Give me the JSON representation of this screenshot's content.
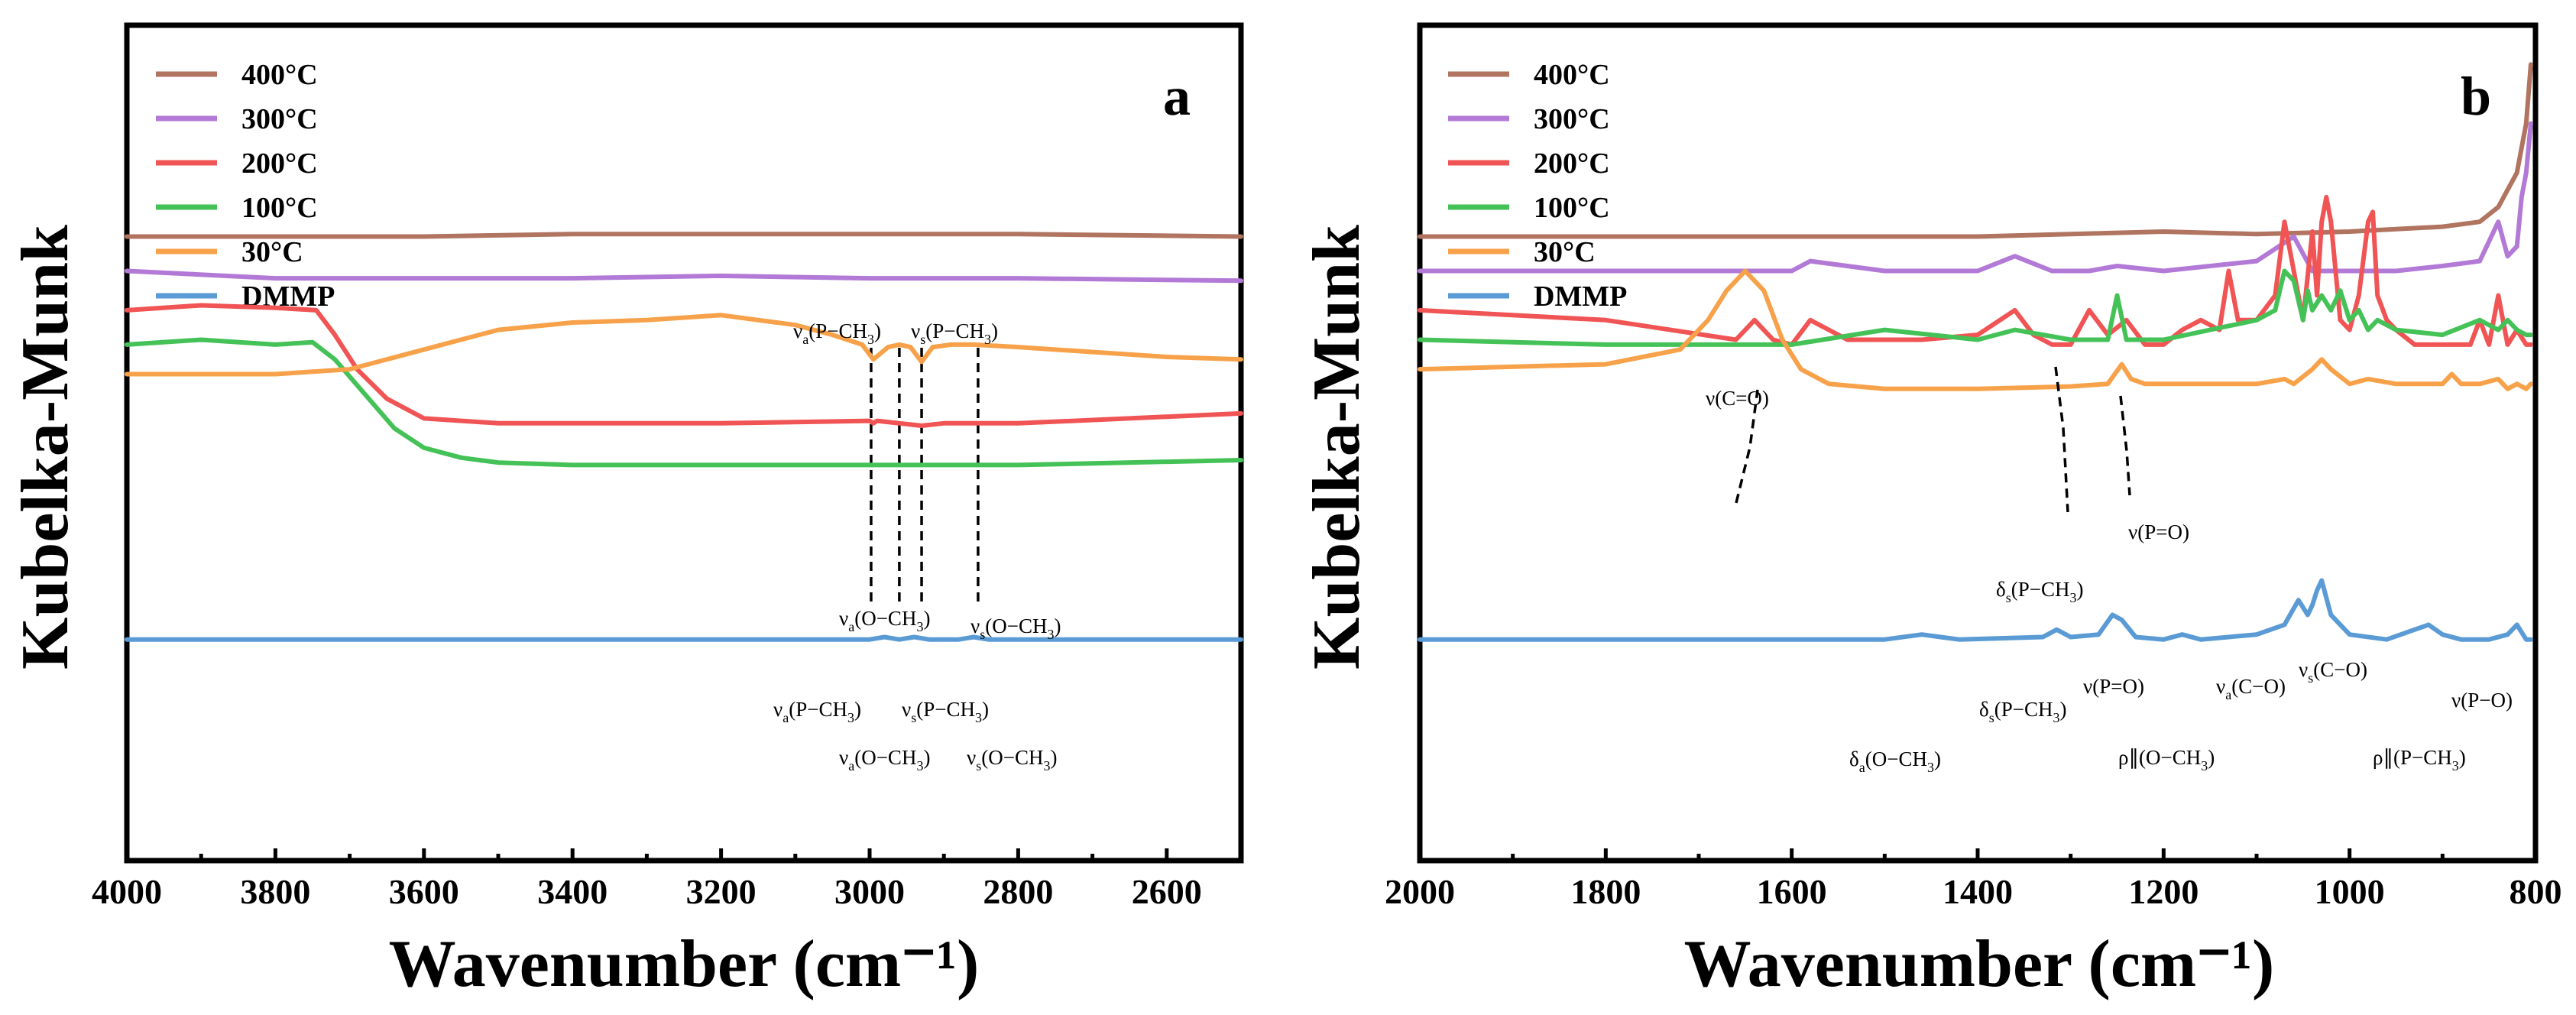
{
  "chart_data": [
    {
      "panel": "a",
      "type": "line",
      "xlabel": "Wavenumber (cm⁻¹)",
      "ylabel": "Kubelka-Munk",
      "xlim": [
        4000,
        2500
      ],
      "xticks": [
        4000,
        3800,
        3600,
        3400,
        3200,
        3000,
        2800,
        2600
      ],
      "legend_position": "top-left",
      "series": [
        {
          "name": "400°C",
          "color": "#b07460",
          "x": [
            4000,
            3800,
            3600,
            3400,
            3200,
            3000,
            2800,
            2500
          ],
          "y": [
            1.07,
            1.07,
            1.07,
            1.075,
            1.075,
            1.075,
            1.075,
            1.07
          ]
        },
        {
          "name": "300°C",
          "color": "#b27ad6",
          "x": [
            4000,
            3800,
            3600,
            3400,
            3200,
            3000,
            2800,
            2500
          ],
          "y": [
            1.0,
            0.985,
            0.985,
            0.985,
            0.99,
            0.985,
            0.985,
            0.98
          ]
        },
        {
          "name": "200°C",
          "color": "#f05454",
          "x": [
            4000,
            3900,
            3800,
            3745,
            3720,
            3690,
            3650,
            3600,
            3500,
            3400,
            3200,
            3000,
            2995,
            2990,
            2960,
            2930,
            2900,
            2800,
            2500
          ],
          "y": [
            0.92,
            0.93,
            0.925,
            0.92,
            0.87,
            0.8,
            0.74,
            0.7,
            0.69,
            0.69,
            0.69,
            0.695,
            0.69,
            0.695,
            0.69,
            0.685,
            0.69,
            0.69,
            0.71
          ]
        },
        {
          "name": "100°C",
          "color": "#45c257",
          "x": [
            4000,
            3900,
            3800,
            3750,
            3720,
            3680,
            3640,
            3600,
            3550,
            3500,
            3400,
            3200,
            3000,
            2900,
            2800,
            2500
          ],
          "y": [
            0.85,
            0.86,
            0.85,
            0.855,
            0.82,
            0.75,
            0.68,
            0.64,
            0.62,
            0.61,
            0.605,
            0.605,
            0.605,
            0.605,
            0.605,
            0.615
          ]
        },
        {
          "name": "30°C",
          "color": "#f7a24a",
          "x": [
            4000,
            3800,
            3700,
            3600,
            3500,
            3400,
            3300,
            3200,
            3100,
            3050,
            3010,
            2995,
            2975,
            2960,
            2945,
            2930,
            2915,
            2890,
            2860,
            2800,
            2600,
            2500
          ],
          "y": [
            0.79,
            0.79,
            0.8,
            0.84,
            0.88,
            0.895,
            0.9,
            0.91,
            0.89,
            0.87,
            0.85,
            0.82,
            0.845,
            0.85,
            0.845,
            0.815,
            0.845,
            0.85,
            0.85,
            0.845,
            0.825,
            0.82
          ]
        },
        {
          "name": "DMMP",
          "color": "#5a9bd5",
          "x": [
            4000,
            3000,
            2980,
            2960,
            2940,
            2920,
            2880,
            2860,
            2840,
            2500
          ],
          "y": [
            0.25,
            0.25,
            0.255,
            0.25,
            0.255,
            0.25,
            0.25,
            0.255,
            0.25,
            0.25
          ]
        }
      ],
      "markers": [
        2998,
        2960,
        2930,
        2854
      ],
      "annotations": {
        "top": [
          {
            "base": "ν",
            "sub": "a",
            "text": "(P−CH",
            "sub2": "3",
            "close": ")"
          },
          {
            "base": "ν",
            "sub": "s",
            "text": "(P−CH",
            "sub2": "3",
            "close": ")"
          }
        ],
        "bottom": [
          {
            "base": "ν",
            "sub": "a",
            "text": "(O−CH",
            "sub2": "3",
            "close": ")"
          },
          {
            "base": "ν",
            "sub": "s",
            "text": "(O−CH",
            "sub2": "3",
            "close": ")"
          }
        ],
        "dmmp_top": [
          {
            "base": "ν",
            "sub": "a",
            "text": "(P−CH",
            "sub2": "3",
            "close": ")"
          },
          {
            "base": "ν",
            "sub": "s",
            "text": "(P−CH",
            "sub2": "3",
            "close": ")"
          }
        ],
        "dmmp_bottom": [
          {
            "base": "ν",
            "sub": "a",
            "text": "(O−CH",
            "sub2": "3",
            "close": ")"
          },
          {
            "base": "ν",
            "sub": "s",
            "text": "(O−CH",
            "sub2": "3",
            "close": ")"
          }
        ]
      }
    },
    {
      "panel": "b",
      "type": "line",
      "xlabel": "Wavenumber (cm⁻¹)",
      "ylabel": "Kubelka-Munk",
      "xlim": [
        2000,
        800
      ],
      "xticks": [
        2000,
        1800,
        1600,
        1400,
        1200,
        1000,
        800
      ],
      "legend_position": "top-left",
      "series": [
        {
          "name": "400°C",
          "color": "#b07460",
          "x": [
            2000,
            1800,
            1600,
            1400,
            1300,
            1200,
            1100,
            1000,
            950,
            900,
            860,
            840,
            820,
            810,
            805
          ],
          "y": [
            1.07,
            1.07,
            1.07,
            1.07,
            1.075,
            1.08,
            1.075,
            1.08,
            1.085,
            1.09,
            1.1,
            1.13,
            1.2,
            1.3,
            1.42
          ]
        },
        {
          "name": "300°C",
          "color": "#b27ad6",
          "x": [
            2000,
            1800,
            1600,
            1580,
            1500,
            1400,
            1360,
            1320,
            1280,
            1250,
            1200,
            1100,
            1060,
            1040,
            1000,
            950,
            900,
            860,
            840,
            830,
            820,
            815,
            810,
            805
          ],
          "y": [
            1.0,
            1.0,
            1.0,
            1.02,
            1.0,
            1.0,
            1.03,
            1.0,
            1.0,
            1.01,
            1.0,
            1.02,
            1.07,
            1.0,
            1.0,
            1.0,
            1.01,
            1.02,
            1.1,
            1.03,
            1.05,
            1.15,
            1.2,
            1.3
          ]
        },
        {
          "name": "200°C",
          "color": "#f05454",
          "x": [
            2000,
            1800,
            1660,
            1640,
            1620,
            1600,
            1580,
            1560,
            1540,
            1500,
            1460,
            1400,
            1360,
            1340,
            1320,
            1300,
            1280,
            1260,
            1240,
            1220,
            1200,
            1180,
            1160,
            1140,
            1130,
            1120,
            1100,
            1080,
            1070,
            1060,
            1050,
            1040,
            1035,
            1030,
            1025,
            1020,
            1010,
            1000,
            990,
            980,
            975,
            970,
            960,
            950,
            930,
            900,
            880,
            870,
            860,
            850,
            840,
            830,
            820,
            810,
            805
          ],
          "y": [
            0.92,
            0.9,
            0.86,
            0.9,
            0.86,
            0.85,
            0.9,
            0.88,
            0.86,
            0.86,
            0.86,
            0.87,
            0.92,
            0.87,
            0.85,
            0.85,
            0.92,
            0.87,
            0.9,
            0.85,
            0.85,
            0.88,
            0.9,
            0.88,
            1.0,
            0.9,
            0.9,
            0.95,
            1.1,
            1.0,
            0.9,
            1.08,
            0.95,
            1.1,
            1.15,
            1.1,
            0.9,
            0.88,
            0.95,
            1.1,
            1.12,
            0.95,
            0.9,
            0.88,
            0.85,
            0.85,
            0.85,
            0.85,
            0.9,
            0.85,
            0.95,
            0.85,
            0.88,
            0.85,
            0.85
          ]
        },
        {
          "name": "100°C",
          "color": "#45c257",
          "x": [
            2000,
            1800,
            1600,
            1500,
            1400,
            1360,
            1300,
            1260,
            1250,
            1240,
            1200,
            1150,
            1100,
            1080,
            1070,
            1060,
            1050,
            1045,
            1040,
            1030,
            1020,
            1010,
            1000,
            990,
            980,
            970,
            950,
            900,
            860,
            840,
            830,
            820,
            810,
            805
          ],
          "y": [
            0.86,
            0.85,
            0.85,
            0.88,
            0.86,
            0.88,
            0.86,
            0.86,
            0.95,
            0.86,
            0.86,
            0.88,
            0.9,
            0.92,
            1.0,
            0.98,
            0.9,
            0.96,
            0.92,
            0.95,
            0.92,
            0.96,
            0.9,
            0.92,
            0.88,
            0.9,
            0.88,
            0.87,
            0.9,
            0.88,
            0.9,
            0.88,
            0.87,
            0.87
          ]
        },
        {
          "name": "30°C",
          "color": "#f7a24a",
          "x": [
            2000,
            1800,
            1720,
            1690,
            1670,
            1650,
            1630,
            1610,
            1590,
            1560,
            1500,
            1400,
            1300,
            1260,
            1245,
            1235,
            1220,
            1200,
            1100,
            1070,
            1060,
            1040,
            1030,
            1020,
            1000,
            980,
            950,
            900,
            890,
            880,
            860,
            840,
            830,
            820,
            810,
            805
          ],
          "y": [
            0.8,
            0.81,
            0.84,
            0.9,
            0.96,
            1.0,
            0.96,
            0.86,
            0.8,
            0.77,
            0.76,
            0.76,
            0.765,
            0.77,
            0.81,
            0.78,
            0.77,
            0.77,
            0.77,
            0.78,
            0.77,
            0.8,
            0.82,
            0.8,
            0.77,
            0.78,
            0.77,
            0.77,
            0.79,
            0.77,
            0.77,
            0.78,
            0.76,
            0.77,
            0.76,
            0.77
          ]
        },
        {
          "name": "DMMP",
          "color": "#5a9bd5",
          "x": [
            2000,
            1500,
            1460,
            1420,
            1330,
            1315,
            1300,
            1270,
            1255,
            1245,
            1230,
            1200,
            1180,
            1160,
            1100,
            1070,
            1055,
            1045,
            1040,
            1035,
            1030,
            1020,
            1000,
            960,
            930,
            915,
            900,
            880,
            850,
            830,
            820,
            810,
            805
          ],
          "y": [
            0.25,
            0.25,
            0.26,
            0.25,
            0.255,
            0.27,
            0.255,
            0.26,
            0.3,
            0.29,
            0.255,
            0.25,
            0.26,
            0.25,
            0.26,
            0.28,
            0.33,
            0.3,
            0.32,
            0.35,
            0.37,
            0.3,
            0.26,
            0.25,
            0.27,
            0.28,
            0.26,
            0.25,
            0.25,
            0.26,
            0.28,
            0.25,
            0.25
          ]
        }
      ],
      "annotations": {
        "co": {
          "text": "ν(C=O)"
        },
        "ds_pch3": {
          "base": "δ",
          "sub": "s",
          "text": "(P−CH",
          "sub2": "3",
          "close": ")"
        },
        "vpo": {
          "text": "ν(P=O)"
        },
        "dmmp_ds_pch3": {
          "base": "δ",
          "sub": "s",
          "text": "(P−CH",
          "sub2": "3",
          "close": ")"
        },
        "dmmp_vpo": {
          "text": "ν(P=O)"
        },
        "dmmp_va_co": {
          "base": "ν",
          "sub": "a",
          "text": "(C−O)"
        },
        "dmmp_vs_co": {
          "base": "ν",
          "sub": "s",
          "text": "(C−O)"
        },
        "dmmp_vpo2": {
          "text": "ν(P−O)"
        },
        "dmmp_da_och3": {
          "base": "δ",
          "sub": "a",
          "text": "(O−CH",
          "sub2": "3",
          "close": ")"
        },
        "dmmp_rho_och3": {
          "text": "ρ∥(O−CH",
          "sub2": "3",
          "close": ")"
        },
        "dmmp_rho_pch3": {
          "text": "ρ∥(P−CH",
          "sub2": "3",
          "close": ")"
        }
      }
    }
  ]
}
